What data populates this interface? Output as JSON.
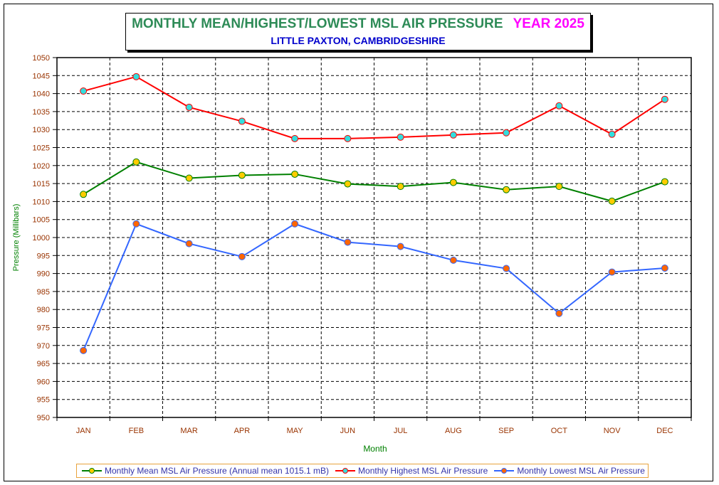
{
  "chart_data": {
    "type": "line",
    "title": "MONTHLY MEAN/HIGHEST/LOWEST MSL AIR PRESSURE",
    "title_year": "YEAR 2025",
    "subtitle": "LITTLE PAXTON, CAMBRIDGESHIRE",
    "xlabel": "Month",
    "ylabel": "Pressure (Millibars)",
    "ylim": [
      950,
      1050
    ],
    "ytick_step": 5,
    "yticks": [
      "950",
      "955",
      "960",
      "965",
      "970",
      "975",
      "980",
      "985",
      "990",
      "995",
      "1000",
      "1005",
      "1010",
      "1015",
      "1020",
      "1025",
      "1030",
      "1035",
      "1040",
      "1045",
      "1050"
    ],
    "categories": [
      "JAN",
      "FEB",
      "MAR",
      "APR",
      "MAY",
      "JUN",
      "JUL",
      "AUG",
      "SEP",
      "OCT",
      "NOV",
      "DEC"
    ],
    "grid": true,
    "legend_position": "bottom",
    "series": [
      {
        "name": "Monthly Mean MSL Air Pressure (Annual mean 1015.1 mB)",
        "line_color": "#008000",
        "marker_color": "#ffcc00",
        "marker_edge": "#008000",
        "values": [
          1012.0,
          1021.0,
          1016.5,
          1017.3,
          1017.6,
          1014.9,
          1014.2,
          1015.3,
          1013.3,
          1014.2,
          1010.1,
          1015.5
        ]
      },
      {
        "name": "Monthly Highest MSL Air Pressure",
        "line_color": "#ff0000",
        "marker_color": "#33dddd",
        "marker_edge": "#ff0000",
        "values": [
          1040.7,
          1044.7,
          1036.2,
          1032.3,
          1027.5,
          1027.5,
          1027.9,
          1028.5,
          1029.1,
          1036.6,
          1028.7,
          1038.4
        ]
      },
      {
        "name": "Monthly Lowest MSL Air Pressure",
        "line_color": "#3366ff",
        "marker_color": "#ff6600",
        "marker_edge": "#3366ff",
        "values": [
          968.6,
          1003.8,
          998.3,
          994.7,
          1003.8,
          998.7,
          997.5,
          993.7,
          991.4,
          978.9,
          990.4,
          991.5
        ]
      }
    ]
  },
  "colors": {
    "title_main": "#2e8b57",
    "title_year": "#ff00ff",
    "subtitle": "#0000cc",
    "tick_labels": "#993300",
    "axis_titles": "#008000",
    "legend_text": "#3333aa",
    "legend_border": "#e8a33c"
  }
}
